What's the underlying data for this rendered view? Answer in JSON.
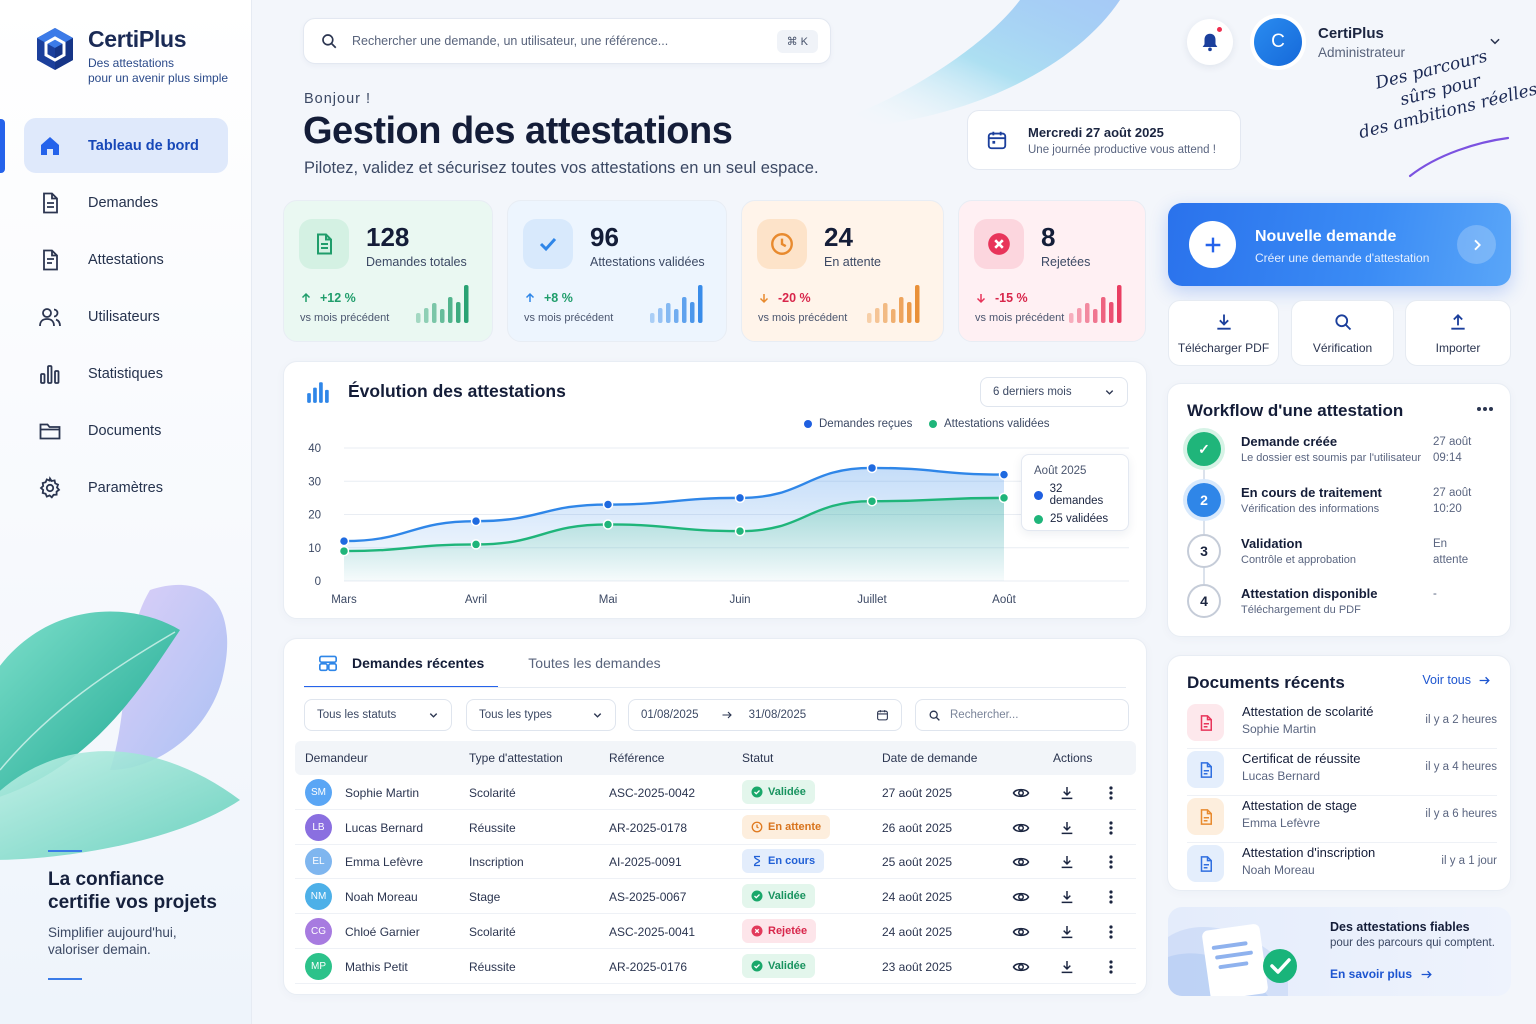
{
  "app": {
    "name": "CertiPlus",
    "tagline_line1": "Des attestations",
    "tagline_line2": "pour un avenir plus simple"
  },
  "sidebar": {
    "items": [
      {
        "label": "Tableau de bord",
        "icon": "home-icon",
        "active": true
      },
      {
        "label": "Demandes",
        "icon": "document-icon"
      },
      {
        "label": "Attestations",
        "icon": "certificate-icon"
      },
      {
        "label": "Utilisateurs",
        "icon": "users-icon"
      },
      {
        "label": "Statistiques",
        "icon": "bar-chart-icon"
      },
      {
        "label": "Documents",
        "icon": "folder-icon"
      },
      {
        "label": "Paramètres",
        "icon": "gear-icon"
      }
    ],
    "promo_title_line1": "La confiance",
    "promo_title_line2": "certifie vos projets",
    "promo_text_line1": "Simplifier aujourd'hui,",
    "promo_text_line2": "valoriser demain."
  },
  "search": {
    "placeholder": "Rechercher une demande, un utilisateur, une référence...",
    "shortcut": "⌘ K"
  },
  "user": {
    "initial": "C",
    "name": "CertiPlus",
    "role": "Administrateur"
  },
  "slogan": {
    "line1": "Des parcours",
    "line2": "sûrs pour",
    "line3": "des ambitions réelles."
  },
  "header": {
    "greeting": "Bonjour !",
    "title": "Gestion des attestations",
    "subtitle": "Pilotez, validez et sécurisez toutes vos attestations en un seul espace."
  },
  "date": {
    "day": "Mercredi 27 août 2025",
    "message": "Une journée productive vous attend !"
  },
  "stats": [
    {
      "value": "128",
      "label": "Demandes totales",
      "change": "+12 %",
      "trend": "up",
      "period": "vs mois précédent",
      "color": "#1f9d6b",
      "bg": "#eaf8f2",
      "icon_bg": "#d4f1e3"
    },
    {
      "value": "96",
      "label": "Attestations validées",
      "change": "+8 %",
      "trend": "up",
      "period": "vs mois précédent",
      "color": "#2f86e8",
      "bg": "#edf5fe",
      "icon_bg": "#d8e9fc"
    },
    {
      "value": "24",
      "label": "En attente",
      "change": "-20 %",
      "trend": "down",
      "period": "vs mois précédent",
      "color": "#e88a2e",
      "bg": "#fff4ea",
      "icon_bg": "#fde3c9"
    },
    {
      "value": "8",
      "label": "Rejetées",
      "change": "-15 %",
      "trend": "down",
      "period": "vs mois précédent",
      "color": "#e8345a",
      "bg": "#fff0f3",
      "icon_bg": "#fcd6de"
    }
  ],
  "chart_section": {
    "title": "Évolution des attestations",
    "period_select": "6 derniers mois",
    "tooltip": {
      "title": "Août 2025",
      "line1": "32 demandes",
      "line2": "25 validées"
    }
  },
  "chart_data": {
    "type": "area",
    "categories": [
      "Mars",
      "Avril",
      "Mai",
      "Juin",
      "Juillet",
      "Août"
    ],
    "series": [
      {
        "name": "Demandes reçues",
        "values": [
          12,
          18,
          23,
          25,
          34,
          32
        ],
        "color": "#2f86e8"
      },
      {
        "name": "Attestations validées",
        "values": [
          9,
          11,
          17,
          15,
          24,
          25
        ],
        "color": "#1fb57a"
      }
    ],
    "ylim": [
      0,
      40
    ],
    "yticks": [
      0,
      10,
      20,
      30,
      40
    ],
    "grid": true,
    "legend": "top-right"
  },
  "requests": {
    "tab_recent": "Demandes récentes",
    "tab_all": "Toutes les demandes",
    "filter_status": "Tous les statuts",
    "filter_type": "Tous les types",
    "date_from": "01/08/2025",
    "date_to": "31/08/2025",
    "search_placeholder": "Rechercher...",
    "columns": [
      "Demandeur",
      "Type d'attestation",
      "Référence",
      "Statut",
      "Date de demande",
      "Actions"
    ],
    "rows": [
      {
        "initials": "SM",
        "name": "Sophie Martin",
        "type": "Scolarité",
        "ref": "ASC-2025-0042",
        "status": "Validée",
        "status_kind": "ok",
        "date": "27 août 2025",
        "avatar": "#5aa6f5"
      },
      {
        "initials": "LB",
        "name": "Lucas Bernard",
        "type": "Réussite",
        "ref": "AR-2025-0178",
        "status": "En attente",
        "status_kind": "wait",
        "date": "26 août 2025",
        "avatar": "#8a6fe0"
      },
      {
        "initials": "EL",
        "name": "Emma Lefèvre",
        "type": "Inscription",
        "ref": "AI-2025-0091",
        "status": "En cours",
        "status_kind": "prog",
        "date": "25 août 2025",
        "avatar": "#7fb6ef"
      },
      {
        "initials": "NM",
        "name": "Noah Moreau",
        "type": "Stage",
        "ref": "AS-2025-0067",
        "status": "Validée",
        "status_kind": "ok",
        "date": "24 août 2025",
        "avatar": "#4db0e8"
      },
      {
        "initials": "CG",
        "name": "Chloé Garnier",
        "type": "Scolarité",
        "ref": "ASC-2025-0041",
        "status": "Rejetée",
        "status_kind": "rej",
        "date": "24 août 2025",
        "avatar": "#a77be0"
      },
      {
        "initials": "MP",
        "name": "Mathis Petit",
        "type": "Réussite",
        "ref": "AR-2025-0176",
        "status": "Validée",
        "status_kind": "ok",
        "date": "23 août 2025",
        "avatar": "#2cc28a"
      }
    ]
  },
  "new_request": {
    "title": "Nouvelle demande",
    "subtitle": "Créer une demande d'attestation"
  },
  "quick_actions": [
    {
      "label": "Télécharger PDF",
      "icon": "download-icon"
    },
    {
      "label": "Vérification",
      "icon": "search-icon"
    },
    {
      "label": "Importer",
      "icon": "upload-icon"
    }
  ],
  "workflow": {
    "title": "Workflow d'une attestation",
    "steps": [
      {
        "num": "✓",
        "title": "Demande créée",
        "sub": "Le dossier est soumis par l'utilisateur",
        "date1": "27 août",
        "date2": "09:14",
        "state": "done"
      },
      {
        "num": "2",
        "title": "En cours de traitement",
        "sub": "Vérification des informations",
        "date1": "27 août",
        "date2": "10:20",
        "state": "current"
      },
      {
        "num": "3",
        "title": "Validation",
        "sub": "Contrôle et approbation",
        "date1": "En attente",
        "date2": "",
        "state": "todo"
      },
      {
        "num": "4",
        "title": "Attestation disponible",
        "sub": "Téléchargement du PDF",
        "date1": "-",
        "date2": "",
        "state": "todo"
      }
    ]
  },
  "documents": {
    "title": "Documents récents",
    "see_all": "Voir tous",
    "items": [
      {
        "title": "Attestation de scolarité",
        "person": "Sophie Martin",
        "time": "il y a 2 heures",
        "color": "#e8345a",
        "bg": "#fde8ec"
      },
      {
        "title": "Certificat de réussite",
        "person": "Lucas Bernard",
        "time": "il y a 4 heures",
        "color": "#2f6fe0",
        "bg": "#e4eefc"
      },
      {
        "title": "Attestation de stage",
        "person": "Emma Lefèvre",
        "time": "il y a 6 heures",
        "color": "#e88a2e",
        "bg": "#fdeedd"
      },
      {
        "title": "Attestation d'inscription",
        "person": "Noah Moreau",
        "time": "il y a 1 jour",
        "color": "#2f6fe0",
        "bg": "#e4eefc"
      }
    ]
  },
  "promo_card": {
    "title": "Des attestations fiables",
    "text": "pour des parcours qui comptent.",
    "link": "En savoir plus"
  }
}
